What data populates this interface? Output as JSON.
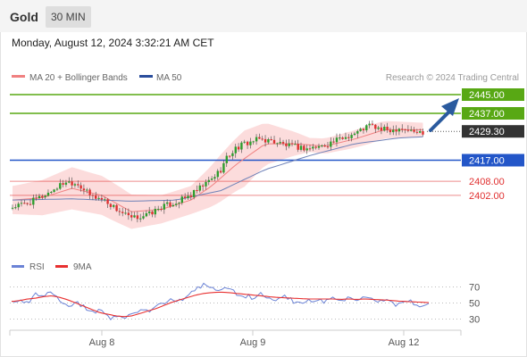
{
  "header": {
    "instrument": "Gold",
    "timeframe": "30 MIN",
    "datetime": "Monday, August 12, 2024 3:32:21 AM CET"
  },
  "legend": {
    "ma20_bb": "MA 20 + Bollinger Bands",
    "ma50": "MA 50",
    "credit": "Research © 2024 Trading Central"
  },
  "rsi_legend": {
    "rsi": "RSI",
    "ma9": "9MA"
  },
  "colors": {
    "bull": "#2e9e2e",
    "bear": "#e03030",
    "band": "#fcd6d6",
    "ma20": "#f08080",
    "ma50": "#6f82b8",
    "resistance": "#58a814",
    "support": "#2356c8",
    "price": "#333333",
    "target": "#e03030",
    "arrow": "#2a5a9e",
    "rsi": "#6b83d6",
    "rsi_ma": "#e83030"
  },
  "chart_data": [
    {
      "type": "candlestick",
      "title": "Gold",
      "x_labels": [
        "Aug 8",
        "Aug 9",
        "Aug 12"
      ],
      "levels": [
        {
          "value": 2445.0,
          "label": "2445.00",
          "kind": "resistance"
        },
        {
          "value": 2437.0,
          "label": "2437.00",
          "kind": "resistance"
        },
        {
          "value": 2429.3,
          "label": "2429.30",
          "kind": "last_price"
        },
        {
          "value": 2417.0,
          "label": "2417.00",
          "kind": "support"
        },
        {
          "value": 2408.0,
          "label": "2408.00",
          "kind": "target"
        },
        {
          "value": 2402.0,
          "label": "2402.00",
          "kind": "target"
        }
      ],
      "series": [
        {
          "name": "Price",
          "close_path": [
            [
              0,
              2397
            ],
            [
              6,
              2399
            ],
            [
              12,
              2403
            ],
            [
              18,
              2408
            ],
            [
              22,
              2407
            ],
            [
              26,
              2402
            ],
            [
              31,
              2400
            ],
            [
              35,
              2396
            ],
            [
              40,
              2392
            ],
            [
              46,
              2394
            ],
            [
              50,
              2397
            ],
            [
              55,
              2399
            ],
            [
              60,
              2402
            ],
            [
              64,
              2406
            ],
            [
              67,
              2409
            ],
            [
              70,
              2413
            ],
            [
              72,
              2418
            ],
            [
              75,
              2422
            ],
            [
              78,
              2424
            ],
            [
              83,
              2426
            ],
            [
              88,
              2425
            ],
            [
              93,
              2423
            ],
            [
              99,
              2422
            ],
            [
              104,
              2423
            ],
            [
              108,
              2425
            ],
            [
              112,
              2427
            ],
            [
              116,
              2429
            ],
            [
              120,
              2432
            ],
            [
              124,
              2430
            ],
            [
              128,
              2430
            ],
            [
              130,
              2431
            ],
            [
              135,
              2429
            ],
            [
              138,
              2429
            ]
          ]
        },
        {
          "name": "MA 50",
          "path": [
            [
              0,
              2400
            ],
            [
              20,
              2400.5
            ],
            [
              40,
              2399.5
            ],
            [
              55,
              2400
            ],
            [
              70,
              2404
            ],
            [
              85,
              2413
            ],
            [
              100,
              2419
            ],
            [
              115,
              2424
            ],
            [
              130,
              2426.5
            ],
            [
              138,
              2427
            ]
          ]
        },
        {
          "name": "MA 20 + Bollinger Bands",
          "path": [
            [
              0,
              2400
            ],
            [
              10,
              2401
            ],
            [
              20,
              2405
            ],
            [
              30,
              2402
            ],
            [
              40,
              2395
            ],
            [
              50,
              2396
            ],
            [
              60,
              2400
            ],
            [
              67,
              2406
            ],
            [
              75,
              2415
            ],
            [
              85,
              2424
            ],
            [
              95,
              2424
            ],
            [
              105,
              2423
            ],
            [
              115,
              2426
            ],
            [
              125,
              2430
            ],
            [
              138,
              2430
            ]
          ],
          "band_width": [
            [
              0,
              6
            ],
            [
              20,
              9
            ],
            [
              35,
              8
            ],
            [
              50,
              6
            ],
            [
              60,
              6
            ],
            [
              70,
              10
            ],
            [
              78,
              12
            ],
            [
              85,
              9
            ],
            [
              100,
              3
            ],
            [
              120,
              4
            ],
            [
              138,
              3
            ]
          ]
        }
      ]
    },
    {
      "type": "line",
      "title": "RSI",
      "yticks": [
        70,
        50,
        30
      ],
      "series": [
        {
          "name": "RSI",
          "values": [
            50,
            55,
            48,
            60,
            57,
            64,
            52,
            46,
            50,
            45,
            39,
            41,
            33,
            30,
            33,
            36,
            42,
            39,
            47,
            49,
            56,
            53,
            61,
            66,
            73,
            69,
            65,
            68,
            62,
            59,
            57,
            61,
            54,
            55,
            59,
            53,
            48,
            52,
            55,
            52,
            57,
            53,
            55,
            51,
            57,
            54,
            51,
            53,
            48,
            54,
            51,
            47,
            50
          ]
        },
        {
          "name": "9MA",
          "values": [
            52,
            53,
            55,
            56,
            58,
            59,
            57,
            54,
            50,
            46,
            42,
            38,
            36,
            34,
            33,
            34,
            37,
            40,
            43,
            47,
            51,
            54,
            57,
            60,
            62,
            63,
            63.5,
            63,
            62,
            61,
            60,
            59,
            58,
            57,
            56.5,
            56,
            55.5,
            55,
            55,
            55,
            55,
            54.5,
            55,
            54.5,
            55,
            54.5,
            54,
            53.5,
            52.5,
            52,
            51.5,
            51,
            50.5
          ]
        }
      ]
    }
  ]
}
